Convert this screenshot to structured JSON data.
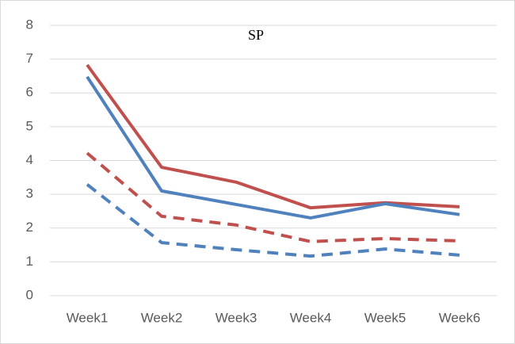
{
  "chart_data": {
    "type": "line",
    "title": "SP",
    "categories": [
      "Week1",
      "Week2",
      "Week3",
      "Week4",
      "Week5",
      "Week6"
    ],
    "series": [
      {
        "color": "#c0504d",
        "dash": false,
        "values": [
          6.83,
          3.8,
          3.36,
          2.6,
          2.75,
          2.63
        ]
      },
      {
        "color": "#4f81bd",
        "dash": false,
        "values": [
          6.48,
          3.1,
          2.7,
          2.3,
          2.72,
          2.4
        ]
      },
      {
        "color": "#c0504d",
        "dash": true,
        "values": [
          4.22,
          2.35,
          2.09,
          1.6,
          1.69,
          1.62
        ]
      },
      {
        "color": "#4f81bd",
        "dash": true,
        "values": [
          3.29,
          1.57,
          1.36,
          1.17,
          1.38,
          1.2
        ]
      }
    ],
    "ylim": [
      0,
      8
    ],
    "yticks": [
      0,
      1,
      2,
      3,
      4,
      5,
      6,
      7,
      8
    ],
    "grid": true
  }
}
